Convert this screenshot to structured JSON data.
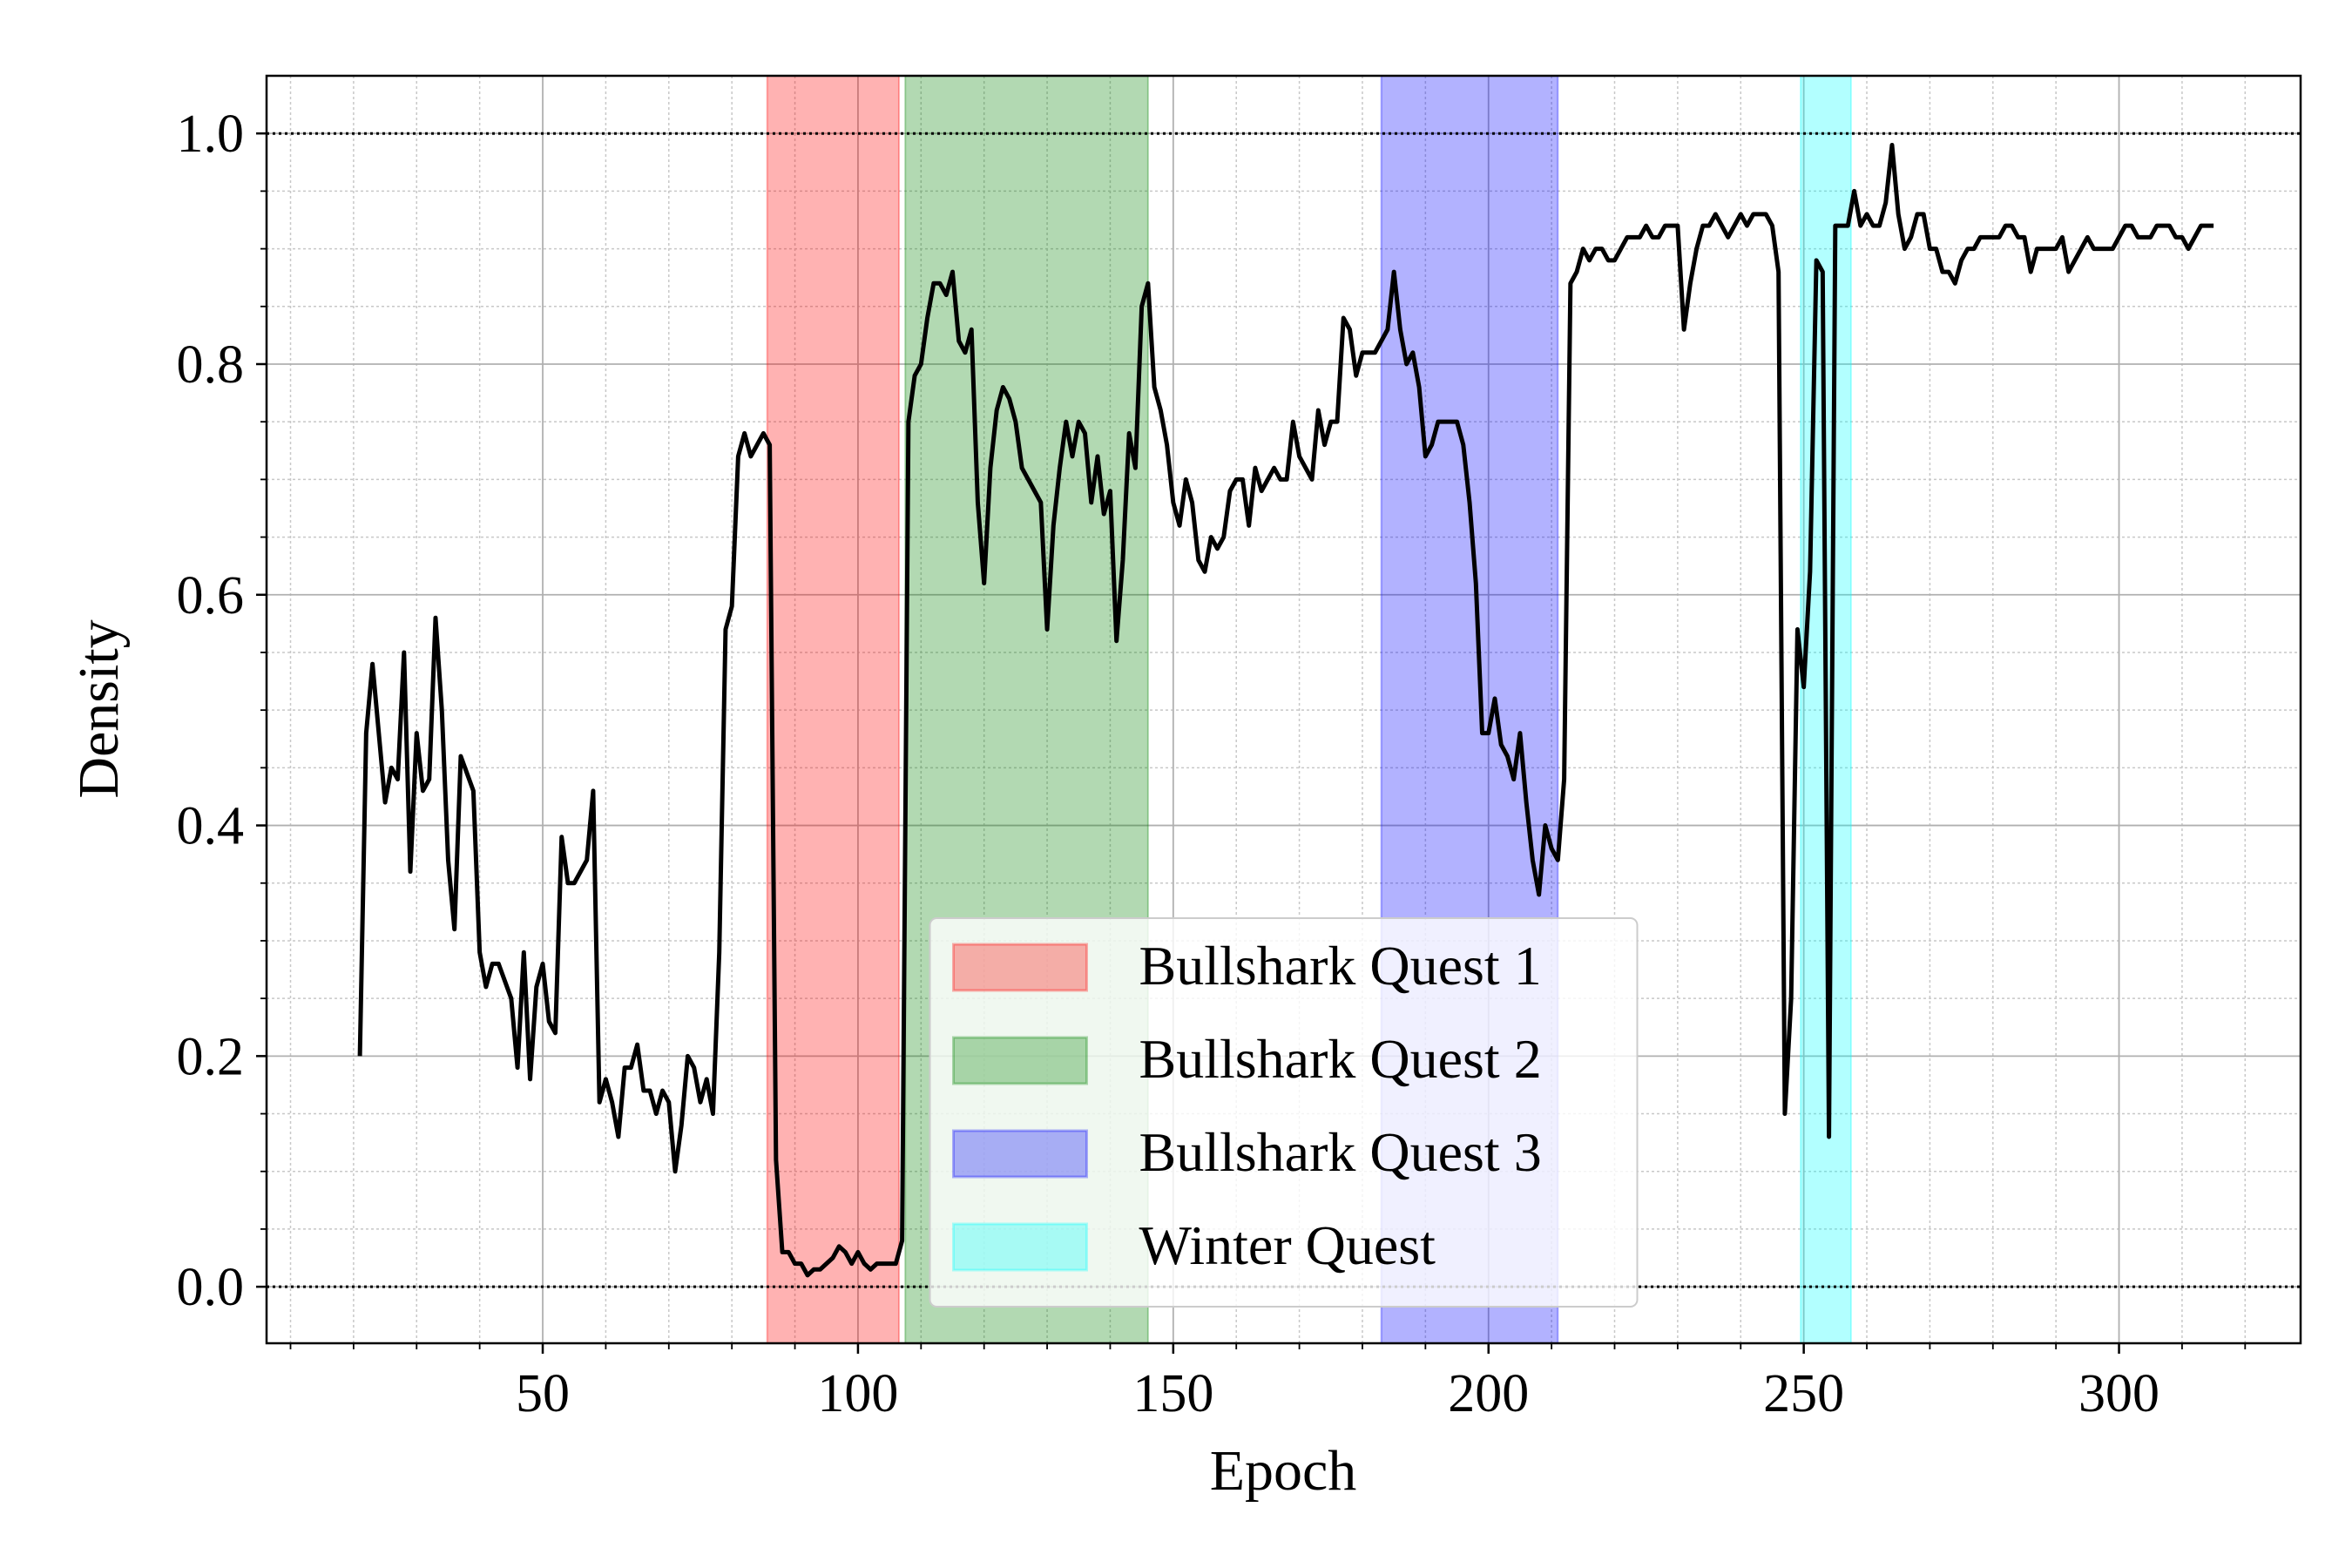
{
  "chart_data": {
    "type": "line",
    "xlabel": "Epoch",
    "ylabel": "Density",
    "color": "#000000",
    "x": [
      21,
      22,
      23,
      25,
      26,
      27,
      28,
      29,
      30,
      31,
      32,
      33,
      34,
      35,
      36,
      37,
      39,
      40,
      41,
      42,
      43,
      45,
      46,
      47,
      48,
      49,
      50,
      51,
      52,
      53,
      54,
      55,
      57,
      58,
      59,
      60,
      61,
      62,
      63,
      64,
      65,
      66,
      67,
      68,
      69,
      70,
      71,
      72,
      73,
      74,
      75,
      76,
      77,
      78,
      79,
      80,
      81,
      82,
      83,
      84,
      85,
      86,
      87,
      88,
      89,
      90,
      91,
      92,
      93,
      94,
      95,
      96,
      97,
      98,
      99,
      100,
      101,
      102,
      103,
      104,
      105,
      106,
      107,
      108,
      109,
      110,
      111,
      112,
      113,
      114,
      115,
      116,
      117,
      118,
      119,
      120,
      121,
      122,
      123,
      124,
      125,
      126,
      127,
      128,
      129,
      130,
      131,
      132,
      133,
      134,
      135,
      136,
      137,
      138,
      139,
      140,
      141,
      142,
      143,
      144,
      145,
      146,
      147,
      148,
      149,
      150,
      151,
      152,
      153,
      154,
      155,
      156,
      157,
      158,
      159,
      160,
      161,
      162,
      163,
      164,
      165,
      166,
      167,
      168,
      169,
      170,
      171,
      172,
      173,
      174,
      175,
      176,
      177,
      178,
      179,
      180,
      181,
      182,
      183,
      184,
      185,
      186,
      187,
      188,
      189,
      190,
      191,
      192,
      193,
      194,
      195,
      196,
      197,
      198,
      199,
      200,
      201,
      202,
      203,
      204,
      205,
      206,
      207,
      208,
      209,
      210,
      211,
      212,
      213,
      214,
      215,
      216,
      217,
      218,
      219,
      220,
      221,
      222,
      223,
      224,
      225,
      226,
      227,
      228,
      229,
      230,
      231,
      232,
      233,
      234,
      235,
      236,
      237,
      238,
      239,
      240,
      241,
      242,
      243,
      244,
      245,
      246,
      247,
      248,
      249,
      250,
      251,
      252,
      253,
      254,
      255,
      256,
      257,
      258,
      259,
      260,
      261,
      262,
      263,
      264,
      265,
      266,
      267,
      268,
      269,
      270,
      271,
      272,
      273,
      274,
      275,
      276,
      277,
      278,
      279,
      280,
      281,
      282,
      283,
      284,
      285,
      286,
      287,
      288,
      289,
      290,
      291,
      292,
      293,
      294,
      295,
      296,
      297,
      298,
      299,
      300,
      301,
      302,
      303,
      304,
      305,
      306,
      307,
      308,
      309,
      310,
      311,
      312,
      313,
      314,
      315
    ],
    "values": [
      0.2,
      0.48,
      0.54,
      0.42,
      0.45,
      0.44,
      0.55,
      0.36,
      0.48,
      0.43,
      0.44,
      0.58,
      0.5,
      0.37,
      0.31,
      0.46,
      0.43,
      0.29,
      0.26,
      0.28,
      0.28,
      0.25,
      0.19,
      0.29,
      0.18,
      0.26,
      0.28,
      0.23,
      0.22,
      0.39,
      0.35,
      0.35,
      0.37,
      0.43,
      0.16,
      0.18,
      0.16,
      0.13,
      0.19,
      0.19,
      0.21,
      0.17,
      0.17,
      0.15,
      0.17,
      0.16,
      0.1,
      0.14,
      0.2,
      0.19,
      0.16,
      0.18,
      0.15,
      0.29,
      0.57,
      0.59,
      0.72,
      0.74,
      0.72,
      0.73,
      0.74,
      0.73,
      0.11,
      0.03,
      0.03,
      0.02,
      0.02,
      0.01,
      0.015,
      0.015,
      0.02,
      0.025,
      0.035,
      0.03,
      0.02,
      0.03,
      0.02,
      0.015,
      0.02,
      0.02,
      0.02,
      0.02,
      0.04,
      0.75,
      0.79,
      0.8,
      0.84,
      0.87,
      0.87,
      0.86,
      0.88,
      0.82,
      0.81,
      0.83,
      0.68,
      0.61,
      0.71,
      0.76,
      0.78,
      0.77,
      0.75,
      0.71,
      0.7,
      0.69,
      0.68,
      0.57,
      0.66,
      0.71,
      0.75,
      0.72,
      0.75,
      0.74,
      0.68,
      0.72,
      0.67,
      0.69,
      0.56,
      0.63,
      0.74,
      0.71,
      0.85,
      0.87,
      0.78,
      0.76,
      0.73,
      0.68,
      0.66,
      0.7,
      0.68,
      0.63,
      0.62,
      0.65,
      0.64,
      0.65,
      0.69,
      0.7,
      0.7,
      0.66,
      0.71,
      0.69,
      0.7,
      0.71,
      0.7,
      0.7,
      0.75,
      0.72,
      0.71,
      0.7,
      0.76,
      0.73,
      0.75,
      0.75,
      0.84,
      0.83,
      0.79,
      0.81,
      0.81,
      0.81,
      0.82,
      0.83,
      0.88,
      0.83,
      0.8,
      0.81,
      0.78,
      0.72,
      0.73,
      0.75,
      0.75,
      0.75,
      0.75,
      0.73,
      0.68,
      0.61,
      0.48,
      0.48,
      0.51,
      0.47,
      0.46,
      0.44,
      0.48,
      0.42,
      0.37,
      0.34,
      0.4,
      0.38,
      0.37,
      0.44,
      0.87,
      0.88,
      0.9,
      0.89,
      0.9,
      0.9,
      0.89,
      0.89,
      0.9,
      0.91,
      0.91,
      0.91,
      0.92,
      0.91,
      0.91,
      0.92,
      0.92,
      0.92,
      0.83,
      0.87,
      0.9,
      0.92,
      0.92,
      0.93,
      0.92,
      0.91,
      0.92,
      0.93,
      0.92,
      0.93,
      0.93,
      0.93,
      0.92,
      0.88,
      0.15,
      0.25,
      0.57,
      0.52,
      0.62,
      0.89,
      0.88,
      0.13,
      0.92,
      0.92,
      0.92,
      0.95,
      0.92,
      0.93,
      0.92,
      0.92,
      0.94,
      0.99,
      0.93,
      0.9,
      0.91,
      0.93,
      0.93,
      0.9,
      0.9,
      0.88,
      0.88,
      0.87,
      0.89,
      0.9,
      0.9,
      0.91,
      0.91,
      0.91,
      0.91,
      0.92,
      0.92,
      0.91,
      0.91,
      0.88,
      0.9,
      0.9,
      0.9,
      0.9,
      0.91,
      0.88,
      0.89,
      0.9,
      0.91,
      0.9,
      0.9,
      0.9,
      0.9,
      0.91,
      0.92,
      0.92,
      0.91,
      0.91,
      0.91,
      0.92,
      0.92,
      0.92,
      0.91,
      0.91,
      0.9,
      0.91,
      0.92,
      0.92,
      0.92
    ],
    "spans": [
      {
        "name": "Bullshark Quest 1",
        "start": 85.6,
        "end": 106.5,
        "color": "#ff0000"
      },
      {
        "name": "Bullshark Quest 2",
        "start": 107.5,
        "end": 146,
        "color": "#008000"
      },
      {
        "name": "Bullshark Quest 3",
        "start": 183,
        "end": 211,
        "color": "#0000ff"
      },
      {
        "name": "Winter Quest",
        "start": 249.5,
        "end": 257.5,
        "color": "#00ffff"
      }
    ],
    "hlines": [
      0,
      1
    ],
    "xlim": [
      6.2,
      328.8
    ],
    "ylim": [
      -0.049,
      1.05
    ],
    "xticks": [
      50,
      100,
      150,
      200,
      250,
      300
    ],
    "yticks": [
      {
        "value": 0,
        "label": "0.0"
      },
      0.2,
      0.4,
      0.6,
      0.8,
      {
        "value": 1,
        "label": "1.0"
      }
    ],
    "xticks_minor": [
      10,
      20,
      30,
      40,
      60,
      70,
      80,
      90,
      110,
      120,
      130,
      140,
      160,
      170,
      180,
      190,
      210,
      220,
      230,
      240,
      260,
      270,
      280,
      290,
      310,
      320
    ],
    "yticks_minor": [
      0.05,
      0.1,
      0.15,
      0.25,
      0.3,
      0.35,
      0.45,
      0.5,
      0.55,
      0.65,
      0.7,
      0.75,
      0.85,
      0.9,
      0.95
    ],
    "grid": true,
    "legend_loc": "lower center"
  }
}
